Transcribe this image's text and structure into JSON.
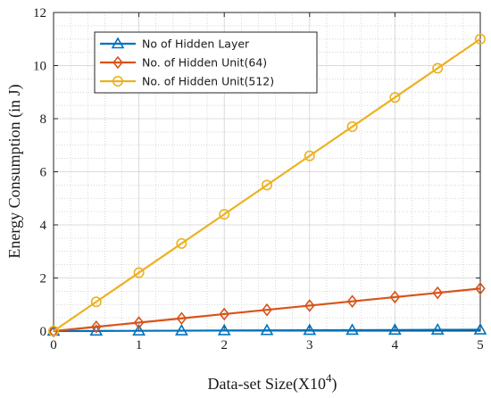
{
  "chart_data": {
    "type": "line",
    "xlabel": "Data-set Size(X10",
    "xlabel_exponent": "4",
    "xlabel_suffix": ")",
    "ylabel": "Energy Consumption (in J)",
    "xlim": [
      0,
      5
    ],
    "ylim": [
      0,
      12
    ],
    "xticks": [
      0,
      1,
      2,
      3,
      4,
      5
    ],
    "yticks": [
      0,
      2,
      4,
      6,
      8,
      10,
      12
    ],
    "x": [
      0,
      0.5,
      1,
      1.5,
      2,
      2.5,
      3,
      3.5,
      4,
      4.5,
      5
    ],
    "grid": true,
    "minor_grid": true,
    "legend_position": "top-left",
    "series": [
      {
        "name": "No of Hidden Layer",
        "color": "#0072BD",
        "marker": "triangle",
        "values": [
          0,
          0.005,
          0.01,
          0.015,
          0.02,
          0.025,
          0.03,
          0.035,
          0.04,
          0.045,
          0.05
        ]
      },
      {
        "name": "No. of Hidden Unit(64)",
        "color": "#D95319",
        "marker": "diamond",
        "values": [
          0,
          0.16,
          0.32,
          0.48,
          0.64,
          0.8,
          0.96,
          1.12,
          1.28,
          1.44,
          1.6
        ]
      },
      {
        "name": "No. of Hidden Unit(512)",
        "color": "#EDB120",
        "marker": "circle",
        "values": [
          0,
          1.1,
          2.2,
          3.3,
          4.4,
          5.5,
          6.6,
          7.7,
          8.8,
          9.9,
          11.0
        ]
      }
    ]
  }
}
